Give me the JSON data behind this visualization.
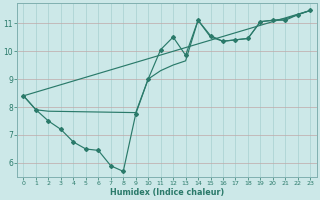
{
  "xlabel": "Humidex (Indice chaleur)",
  "bg_color": "#cce8e8",
  "grid_major_color": "#c0a8a8",
  "grid_minor_color": "#a8d0d0",
  "line_color": "#2a7a6a",
  "xlim": [
    -0.5,
    23.5
  ],
  "ylim": [
    5.5,
    11.7
  ],
  "xticks": [
    0,
    1,
    2,
    3,
    4,
    5,
    6,
    7,
    8,
    9,
    10,
    11,
    12,
    13,
    14,
    15,
    16,
    17,
    18,
    19,
    20,
    21,
    22,
    23
  ],
  "yticks": [
    6,
    7,
    8,
    9,
    10,
    11
  ],
  "line1_x": [
    0,
    1,
    2,
    3,
    4,
    5,
    6,
    7,
    8,
    9,
    10,
    11,
    12,
    13,
    14,
    15,
    16,
    17,
    18,
    19,
    20,
    21,
    22,
    23
  ],
  "line1_y": [
    8.4,
    7.9,
    7.5,
    7.2,
    6.75,
    6.5,
    6.45,
    5.9,
    5.7,
    7.75,
    9.0,
    10.05,
    10.5,
    9.85,
    11.1,
    10.55,
    10.35,
    10.4,
    10.45,
    11.05,
    11.1,
    11.1,
    11.3,
    11.45
  ],
  "line2_x": [
    0,
    1,
    2,
    9,
    10,
    11,
    12,
    13,
    14,
    15,
    16,
    17,
    18,
    19,
    20,
    21,
    22,
    23
  ],
  "line2_y": [
    8.4,
    7.9,
    7.85,
    7.8,
    9.0,
    9.3,
    9.5,
    9.65,
    11.1,
    10.5,
    10.35,
    10.4,
    10.45,
    11.05,
    11.1,
    11.15,
    11.3,
    11.45
  ],
  "line3_x": [
    0,
    23
  ],
  "line3_y": [
    8.4,
    11.45
  ],
  "marker": "D",
  "markersize": 2.0,
  "linewidth": 0.85
}
